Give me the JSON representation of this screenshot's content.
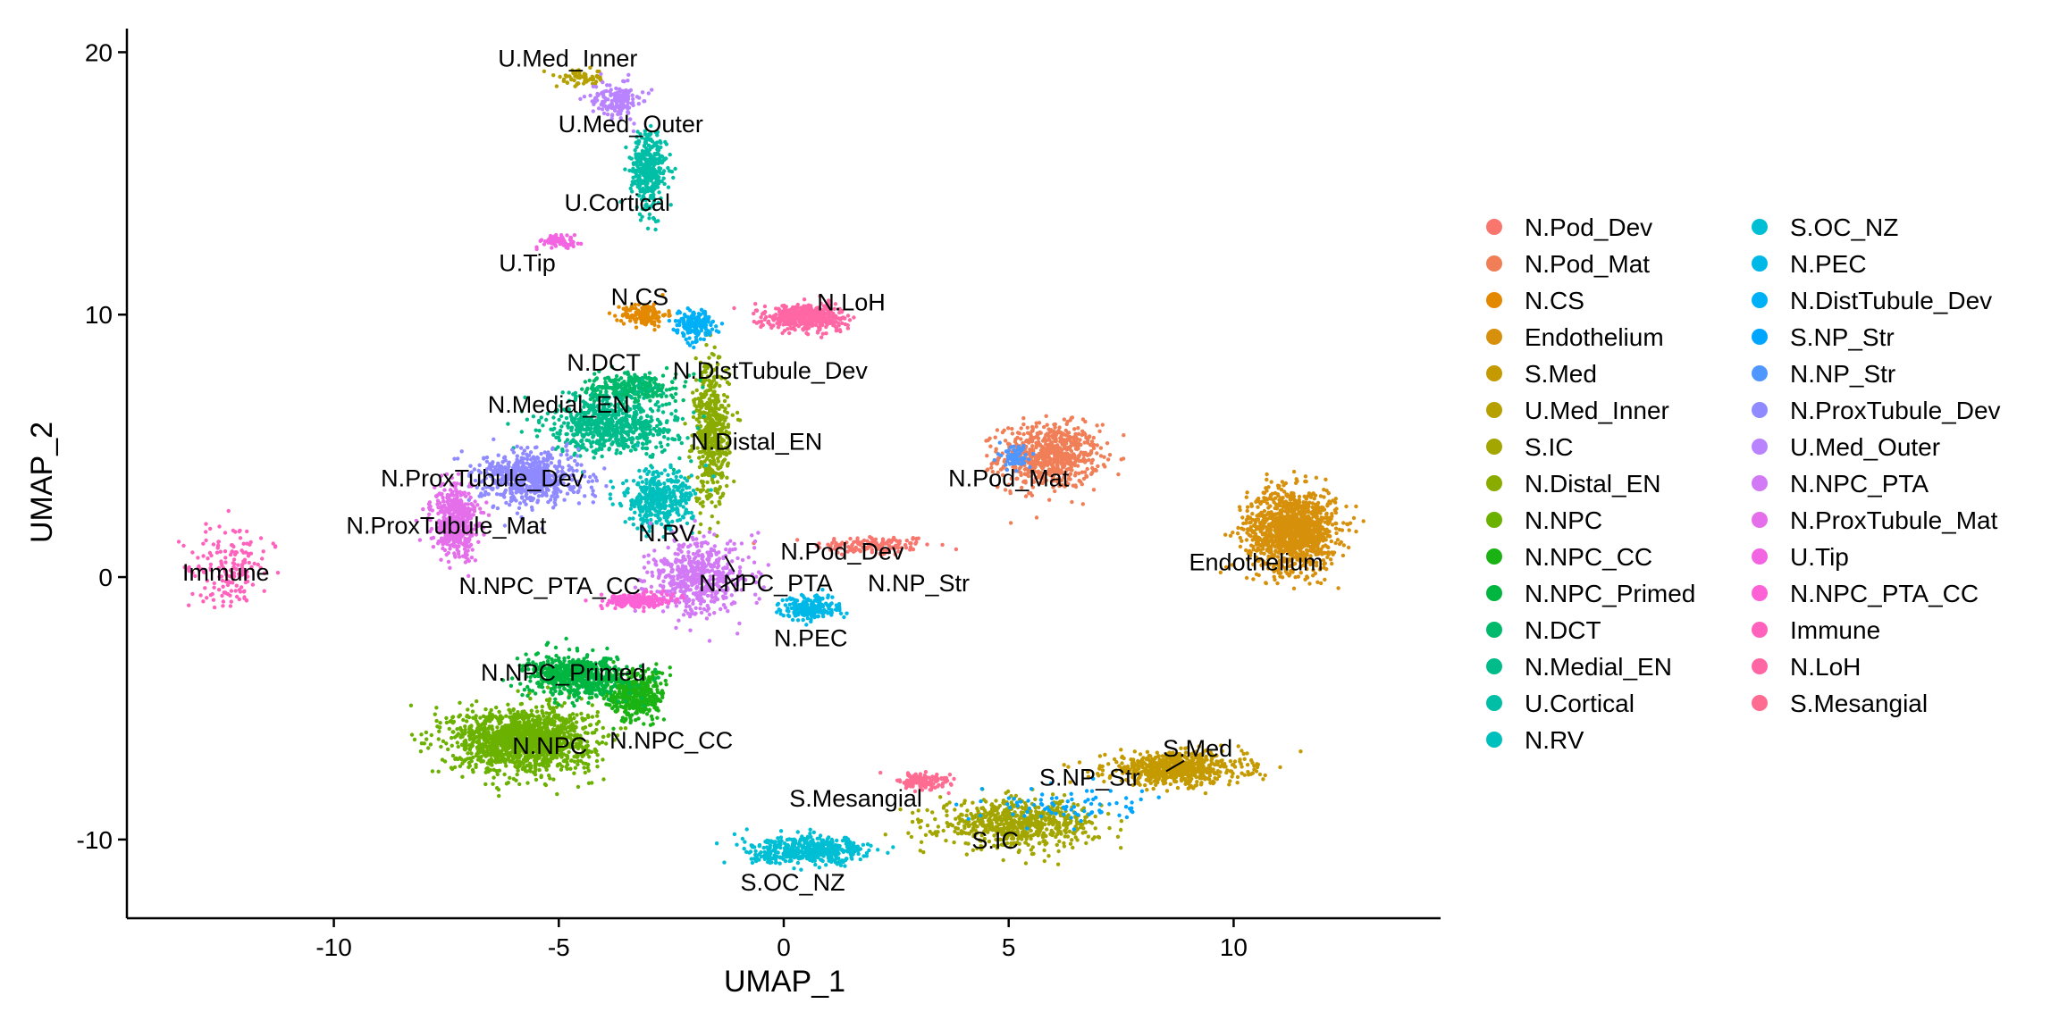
{
  "chart_data": {
    "type": "scatter",
    "title": "",
    "xlabel": "UMAP_1",
    "ylabel": "UMAP_2",
    "xlim": [
      -14.6,
      14.6
    ],
    "ylim": [
      -13,
      20.9
    ],
    "xticks": [
      -10,
      -5,
      0,
      5,
      10
    ],
    "xtick_labels": [
      "-10",
      "-5",
      "0",
      "5",
      "10"
    ],
    "yticks": [
      -10,
      0,
      10,
      20
    ],
    "ytick_labels": [
      "-10",
      "0",
      "10",
      "20"
    ],
    "grid": false,
    "legend_position": "right",
    "legend_columns": 2,
    "marker": "point",
    "clusters": [
      {
        "name": "N.Pod_Dev",
        "color": "#F8766D",
        "center": [
          2.0,
          1.2
        ],
        "spread": [
          1.2,
          0.35
        ],
        "count": 140
      },
      {
        "name": "N.Pod_Mat",
        "color": "#F07F58",
        "center": [
          5.9,
          4.6
        ],
        "spread": [
          1.0,
          1.1
        ],
        "count": 700
      },
      {
        "name": "N.CS",
        "color": "#E38900",
        "center": [
          -3.1,
          10.0
        ],
        "spread": [
          0.45,
          0.4
        ],
        "count": 140
      },
      {
        "name": "Endothelium",
        "color": "#D6900B",
        "center": [
          11.3,
          1.8
        ],
        "spread": [
          0.9,
          1.4
        ],
        "count": 1250
      },
      {
        "name": "S.Med",
        "color": "#C49A00",
        "center": [
          8.7,
          -7.3
        ],
        "spread": [
          1.4,
          0.55
        ],
        "count": 650
      },
      {
        "name": "U.Med_Inner",
        "color": "#B5A000",
        "center": [
          -4.5,
          19.0
        ],
        "spread": [
          0.5,
          0.3
        ],
        "count": 70
      },
      {
        "name": "S.IC",
        "color": "#A3A500",
        "center": [
          5.2,
          -9.4
        ],
        "spread": [
          1.6,
          0.8
        ],
        "count": 650
      },
      {
        "name": "N.Distal_EN",
        "color": "#8AAB00",
        "center": [
          -1.6,
          5.5
        ],
        "spread": [
          0.35,
          2.5
        ],
        "count": 520
      },
      {
        "name": "N.NPC",
        "color": "#6BB100",
        "center": [
          -5.8,
          -6.2
        ],
        "spread": [
          1.4,
          1.1
        ],
        "count": 1500
      },
      {
        "name": "N.NPC_CC",
        "color": "#1BB314",
        "center": [
          -3.3,
          -4.5
        ],
        "spread": [
          0.6,
          0.9
        ],
        "count": 380
      },
      {
        "name": "N.NPC_Primed",
        "color": "#00B540",
        "center": [
          -4.6,
          -3.8
        ],
        "spread": [
          1.0,
          0.7
        ],
        "count": 620
      },
      {
        "name": "N.DCT",
        "color": "#00B96A",
        "center": [
          -3.4,
          7.2
        ],
        "spread": [
          0.9,
          0.5
        ],
        "count": 280
      },
      {
        "name": "N.Medial_EN",
        "color": "#00BC8A",
        "center": [
          -3.8,
          5.8
        ],
        "spread": [
          1.3,
          1.0
        ],
        "count": 650
      },
      {
        "name": "U.Cortical",
        "color": "#00BFA6",
        "center": [
          -3.0,
          15.5
        ],
        "spread": [
          0.35,
          1.4
        ],
        "count": 360
      },
      {
        "name": "N.RV",
        "color": "#00C0BE",
        "center": [
          -2.8,
          2.9
        ],
        "spread": [
          0.7,
          1.0
        ],
        "count": 400
      },
      {
        "name": "S.OC_NZ",
        "color": "#00BED4",
        "center": [
          0.6,
          -10.4
        ],
        "spread": [
          1.2,
          0.45
        ],
        "count": 480
      },
      {
        "name": "N.PEC",
        "color": "#00B8E7",
        "center": [
          0.6,
          -1.2
        ],
        "spread": [
          0.6,
          0.4
        ],
        "count": 200
      },
      {
        "name": "N.DistTubule_Dev",
        "color": "#00B0F6",
        "center": [
          -2.0,
          9.6
        ],
        "spread": [
          0.4,
          0.5
        ],
        "count": 170
      },
      {
        "name": "S.NP_Str",
        "color": "#00A5FF",
        "center": [
          6.3,
          -8.7
        ],
        "spread": [
          1.6,
          0.7
        ],
        "count": 80
      },
      {
        "name": "N.NP_Str",
        "color": "#4F97FF",
        "center": [
          5.2,
          4.6
        ],
        "spread": [
          0.3,
          0.4
        ],
        "count": 70
      },
      {
        "name": "N.ProxTubule_Dev",
        "color": "#8F8AFF",
        "center": [
          -5.6,
          3.8
        ],
        "spread": [
          1.0,
          0.9
        ],
        "count": 620
      },
      {
        "name": "U.Med_Outer",
        "color": "#B983FF",
        "center": [
          -3.7,
          18.2
        ],
        "spread": [
          0.5,
          0.6
        ],
        "count": 160
      },
      {
        "name": "N.NPC_PTA",
        "color": "#D279F5",
        "center": [
          -1.9,
          0.0
        ],
        "spread": [
          1.0,
          1.3
        ],
        "count": 520
      },
      {
        "name": "N.ProxTubule_Mat",
        "color": "#E56EEB",
        "center": [
          -7.3,
          2.1
        ],
        "spread": [
          0.45,
          1.2
        ],
        "count": 480
      },
      {
        "name": "U.Tip",
        "color": "#F364E2",
        "center": [
          -5.0,
          12.8
        ],
        "spread": [
          0.35,
          0.2
        ],
        "count": 80
      },
      {
        "name": "N.NPC_PTA_CC",
        "color": "#FC61D5",
        "center": [
          -3.3,
          -0.9
        ],
        "spread": [
          0.7,
          0.25
        ],
        "count": 220
      },
      {
        "name": "Immune",
        "color": "#FF62BC",
        "center": [
          -12.3,
          0.4
        ],
        "spread": [
          0.8,
          1.4
        ],
        "count": 170
      },
      {
        "name": "N.LoH",
        "color": "#FF67A4",
        "center": [
          0.5,
          9.9
        ],
        "spread": [
          0.8,
          0.45
        ],
        "count": 460
      },
      {
        "name": "S.Mesangial",
        "color": "#FF6C91",
        "center": [
          3.1,
          -7.8
        ],
        "spread": [
          0.5,
          0.3
        ],
        "count": 140
      }
    ],
    "annotations": [
      {
        "text": "U.Med_Inner",
        "x": -4.8,
        "y": 19.8
      },
      {
        "text": "U.Med_Outer",
        "x": -3.4,
        "y": 17.3
      },
      {
        "text": "U.Cortical",
        "x": -3.7,
        "y": 14.3
      },
      {
        "text": "U.Tip",
        "x": -5.7,
        "y": 12.0
      },
      {
        "text": "N.CS",
        "x": -3.2,
        "y": 10.7
      },
      {
        "text": "N.LoH",
        "x": 1.5,
        "y": 10.5
      },
      {
        "text": "N.DCT",
        "x": -4.0,
        "y": 8.2
      },
      {
        "text": "N.DistTubule_Dev",
        "x": -0.3,
        "y": 7.9
      },
      {
        "text": "N.Medial_EN",
        "x": -5.0,
        "y": 6.6
      },
      {
        "text": "N.Distal_EN",
        "x": -0.6,
        "y": 5.2
      },
      {
        "text": "N.ProxTubule_Dev",
        "x": -6.7,
        "y": 3.8
      },
      {
        "text": "N.Pod_Mat",
        "x": 5.0,
        "y": 3.8
      },
      {
        "text": "N.ProxTubule_Mat",
        "x": -7.5,
        "y": 2.0
      },
      {
        "text": "N.RV",
        "x": -2.6,
        "y": 1.7
      },
      {
        "text": "N.Pod_Dev",
        "x": 1.3,
        "y": 1.0
      },
      {
        "text": "Endothelium",
        "x": 10.5,
        "y": 0.6
      },
      {
        "text": "Immune",
        "x": -12.4,
        "y": 0.2
      },
      {
        "text": "N.NPC_PTA_CC",
        "x": -5.2,
        "y": -0.3
      },
      {
        "text": "N.NPC_PTA",
        "x": -0.4,
        "y": -0.2
      },
      {
        "text": "N.NP_Str",
        "x": 3.0,
        "y": -0.2
      },
      {
        "text": "N.PEC",
        "x": 0.6,
        "y": -2.3
      },
      {
        "text": "N.NPC_Primed",
        "x": -4.9,
        "y": -3.6
      },
      {
        "text": "N.NPC_CC",
        "x": -2.5,
        "y": -6.2
      },
      {
        "text": "N.NPC",
        "x": -5.2,
        "y": -6.4
      },
      {
        "text": "S.Med",
        "x": 9.2,
        "y": -6.5
      },
      {
        "text": "S.NP_Str",
        "x": 6.8,
        "y": -7.6
      },
      {
        "text": "S.Mesangial",
        "x": 1.6,
        "y": -8.4
      },
      {
        "text": "S.IC",
        "x": 4.7,
        "y": -10.0
      },
      {
        "text": "S.OC_NZ",
        "x": 0.2,
        "y": -11.6
      }
    ],
    "leader_lines": [
      {
        "from": [
          8.5,
          -7.4
        ],
        "to": [
          8.9,
          -7.0
        ]
      },
      {
        "from": [
          -1.4,
          -0.4
        ],
        "to": [
          -0.9,
          0.1
        ]
      },
      {
        "from": [
          -1.1,
          0.2
        ],
        "to": [
          -1.3,
          0.8
        ]
      }
    ]
  }
}
